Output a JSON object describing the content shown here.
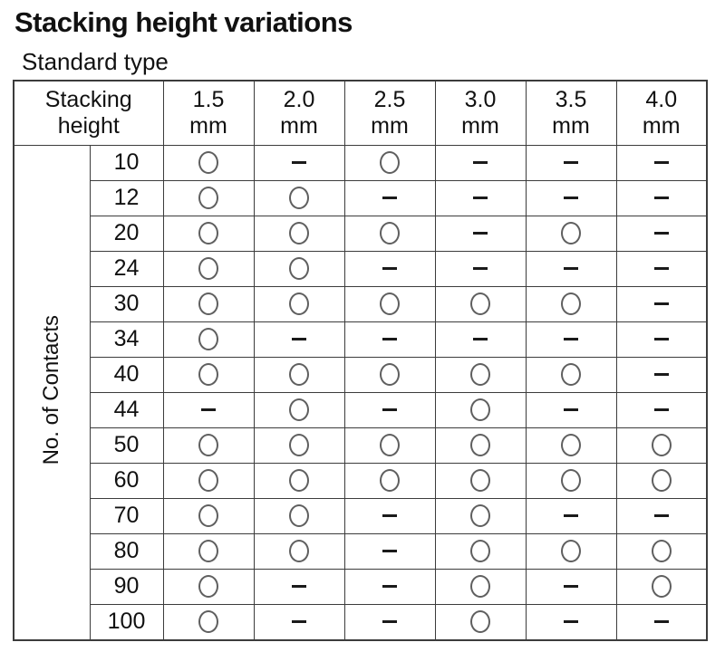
{
  "page": {
    "title": "Stacking height variations",
    "subtitle": "Standard type"
  },
  "table": {
    "corner_header": {
      "line1": "Stacking",
      "line2": "height"
    },
    "column_headers": [
      {
        "value": "1.5",
        "unit": "mm"
      },
      {
        "value": "2.0",
        "unit": "mm"
      },
      {
        "value": "2.5",
        "unit": "mm"
      },
      {
        "value": "3.0",
        "unit": "mm"
      },
      {
        "value": "3.5",
        "unit": "mm"
      },
      {
        "value": "4.0",
        "unit": "mm"
      }
    ],
    "row_axis_label": "No. of Contacts",
    "rows": [
      {
        "contacts": "10",
        "marks": [
          "circle",
          "dash",
          "circle",
          "dash",
          "dash",
          "dash"
        ]
      },
      {
        "contacts": "12",
        "marks": [
          "circle",
          "circle",
          "dash",
          "dash",
          "dash",
          "dash"
        ]
      },
      {
        "contacts": "20",
        "marks": [
          "circle",
          "circle",
          "circle",
          "dash",
          "circle",
          "dash"
        ]
      },
      {
        "contacts": "24",
        "marks": [
          "circle",
          "circle",
          "dash",
          "dash",
          "dash",
          "dash"
        ]
      },
      {
        "contacts": "30",
        "marks": [
          "circle",
          "circle",
          "circle",
          "circle",
          "circle",
          "dash"
        ]
      },
      {
        "contacts": "34",
        "marks": [
          "circle",
          "dash",
          "dash",
          "dash",
          "dash",
          "dash"
        ]
      },
      {
        "contacts": "40",
        "marks": [
          "circle",
          "circle",
          "circle",
          "circle",
          "circle",
          "dash"
        ]
      },
      {
        "contacts": "44",
        "marks": [
          "dash",
          "circle",
          "dash",
          "circle",
          "dash",
          "dash"
        ]
      },
      {
        "contacts": "50",
        "marks": [
          "circle",
          "circle",
          "circle",
          "circle",
          "circle",
          "circle"
        ]
      },
      {
        "contacts": "60",
        "marks": [
          "circle",
          "circle",
          "circle",
          "circle",
          "circle",
          "circle"
        ]
      },
      {
        "contacts": "70",
        "marks": [
          "circle",
          "circle",
          "dash",
          "circle",
          "dash",
          "dash"
        ]
      },
      {
        "contacts": "80",
        "marks": [
          "circle",
          "circle",
          "dash",
          "circle",
          "circle",
          "circle"
        ]
      },
      {
        "contacts": "90",
        "marks": [
          "circle",
          "dash",
          "dash",
          "circle",
          "dash",
          "circle"
        ]
      },
      {
        "contacts": "100",
        "marks": [
          "circle",
          "dash",
          "dash",
          "circle",
          "dash",
          "dash"
        ]
      }
    ]
  },
  "colors": {
    "text": "#111111",
    "border": "#3c3c3c",
    "circle_stroke": "#5f5f5f",
    "dash": "#1a1a1a"
  }
}
